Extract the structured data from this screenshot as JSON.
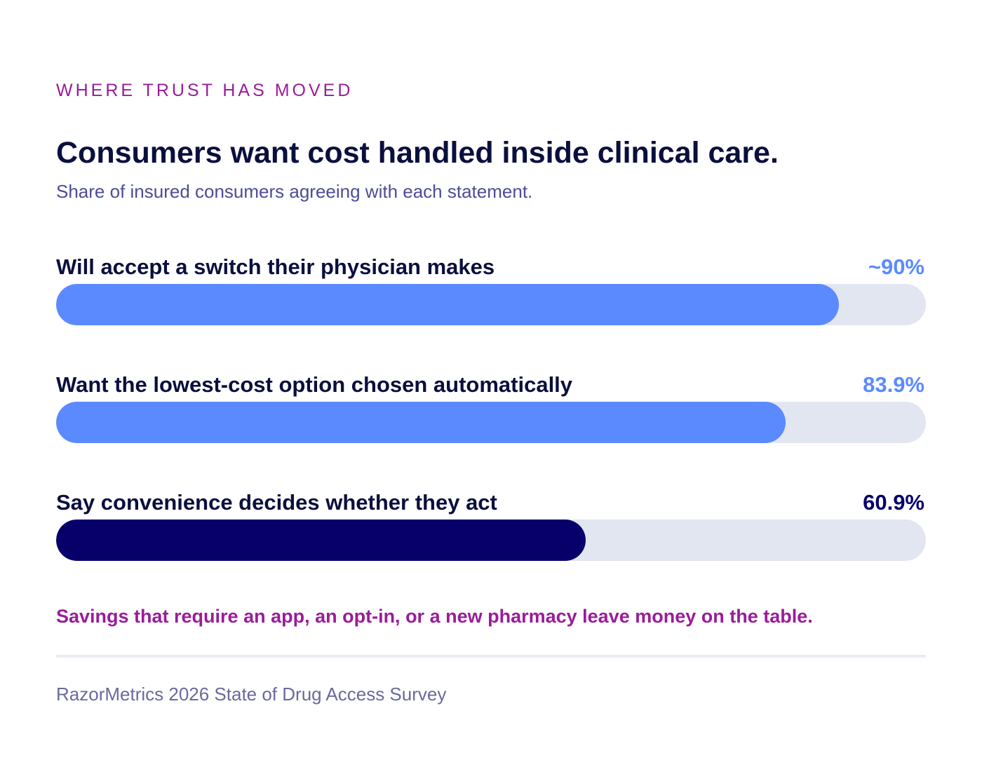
{
  "eyebrow": "WHERE TRUST HAS MOVED",
  "chart_data": {
    "type": "bar",
    "orientation": "horizontal",
    "title": "Consumers want cost handled inside clinical care.",
    "subtitle": "Share of insured consumers agreeing with each statement.",
    "xlim": [
      0,
      100
    ],
    "grid": false,
    "categories": [
      "Will accept a switch their physician makes",
      "Want the lowest-cost option chosen automatically",
      "Say convenience decides whether they act"
    ],
    "values": [
      90,
      83.9,
      60.9
    ],
    "data_labels": [
      "~90%",
      "83.9%",
      "60.9%"
    ],
    "bar_colors": [
      "#5b8aff",
      "#5b8aff",
      "#07006b"
    ],
    "label_colors": [
      "#5b8aff",
      "#5b8aff",
      "#07006b"
    ],
    "track_color": "#e2e6f0"
  },
  "note": "Savings that require an app, an opt-in, or a new pharmacy leave money on the table.",
  "source": "RazorMetrics 2026 State of Drug Access Survey"
}
